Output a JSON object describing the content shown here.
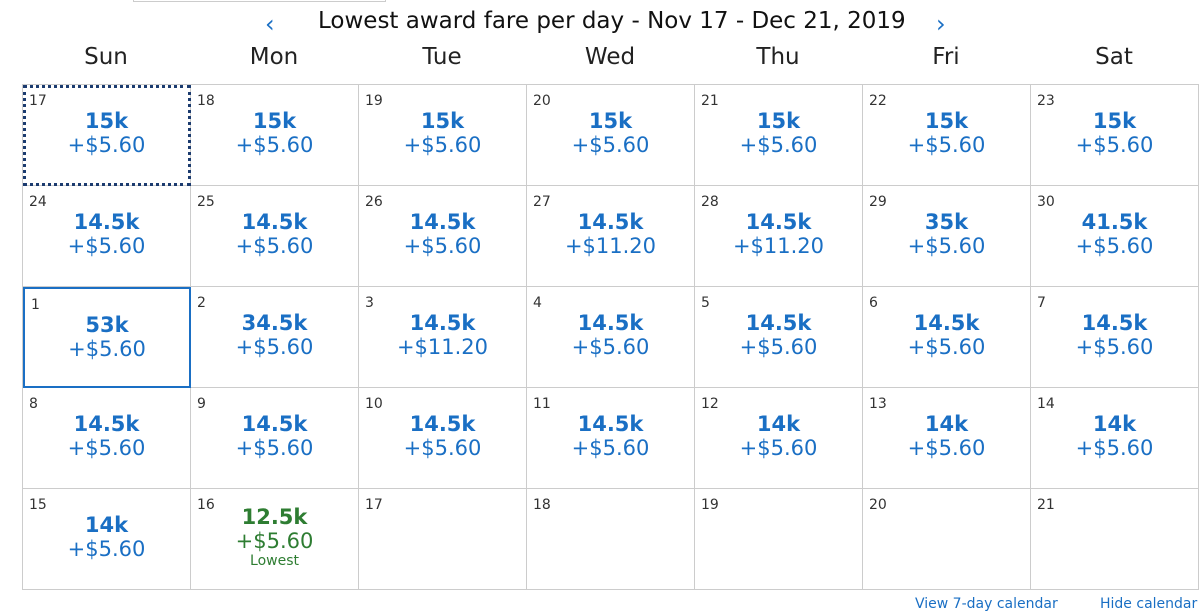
{
  "header": {
    "title": "Lowest award fare per day - Nov 17 - Dec 21, 2019",
    "prev_icon": "chevron-left-icon",
    "next_icon": "chevron-right-icon"
  },
  "weekdays": [
    "Sun",
    "Mon",
    "Tue",
    "Wed",
    "Thu",
    "Fri",
    "Sat"
  ],
  "colors": {
    "accent": "#1a6fc4",
    "lowest": "#2e7d32"
  },
  "cells": [
    {
      "day": "17",
      "miles": "15k",
      "fee": "+$5.60",
      "state": "focus"
    },
    {
      "day": "18",
      "miles": "15k",
      "fee": "+$5.60"
    },
    {
      "day": "19",
      "miles": "15k",
      "fee": "+$5.60"
    },
    {
      "day": "20",
      "miles": "15k",
      "fee": "+$5.60"
    },
    {
      "day": "21",
      "miles": "15k",
      "fee": "+$5.60"
    },
    {
      "day": "22",
      "miles": "15k",
      "fee": "+$5.60"
    },
    {
      "day": "23",
      "miles": "15k",
      "fee": "+$5.60"
    },
    {
      "day": "24",
      "miles": "14.5k",
      "fee": "+$5.60"
    },
    {
      "day": "25",
      "miles": "14.5k",
      "fee": "+$5.60"
    },
    {
      "day": "26",
      "miles": "14.5k",
      "fee": "+$5.60"
    },
    {
      "day": "27",
      "miles": "14.5k",
      "fee": "+$11.20"
    },
    {
      "day": "28",
      "miles": "14.5k",
      "fee": "+$11.20"
    },
    {
      "day": "29",
      "miles": "35k",
      "fee": "+$5.60"
    },
    {
      "day": "30",
      "miles": "41.5k",
      "fee": "+$5.60"
    },
    {
      "day": "1",
      "miles": "53k",
      "fee": "+$5.60",
      "state": "selected"
    },
    {
      "day": "2",
      "miles": "34.5k",
      "fee": "+$5.60"
    },
    {
      "day": "3",
      "miles": "14.5k",
      "fee": "+$11.20"
    },
    {
      "day": "4",
      "miles": "14.5k",
      "fee": "+$5.60"
    },
    {
      "day": "5",
      "miles": "14.5k",
      "fee": "+$5.60"
    },
    {
      "day": "6",
      "miles": "14.5k",
      "fee": "+$5.60"
    },
    {
      "day": "7",
      "miles": "14.5k",
      "fee": "+$5.60"
    },
    {
      "day": "8",
      "miles": "14.5k",
      "fee": "+$5.60"
    },
    {
      "day": "9",
      "miles": "14.5k",
      "fee": "+$5.60"
    },
    {
      "day": "10",
      "miles": "14.5k",
      "fee": "+$5.60"
    },
    {
      "day": "11",
      "miles": "14.5k",
      "fee": "+$5.60"
    },
    {
      "day": "12",
      "miles": "14k",
      "fee": "+$5.60"
    },
    {
      "day": "13",
      "miles": "14k",
      "fee": "+$5.60"
    },
    {
      "day": "14",
      "miles": "14k",
      "fee": "+$5.60"
    },
    {
      "day": "15",
      "miles": "14k",
      "fee": "+$5.60"
    },
    {
      "day": "16",
      "miles": "12.5k",
      "fee": "+$5.60",
      "label": "Lowest",
      "state": "lowest"
    },
    {
      "day": "17"
    },
    {
      "day": "18"
    },
    {
      "day": "19"
    },
    {
      "day": "20"
    },
    {
      "day": "21"
    }
  ],
  "footer": {
    "view_link": "View 7-day calendar",
    "hide_link": "Hide calendar"
  }
}
